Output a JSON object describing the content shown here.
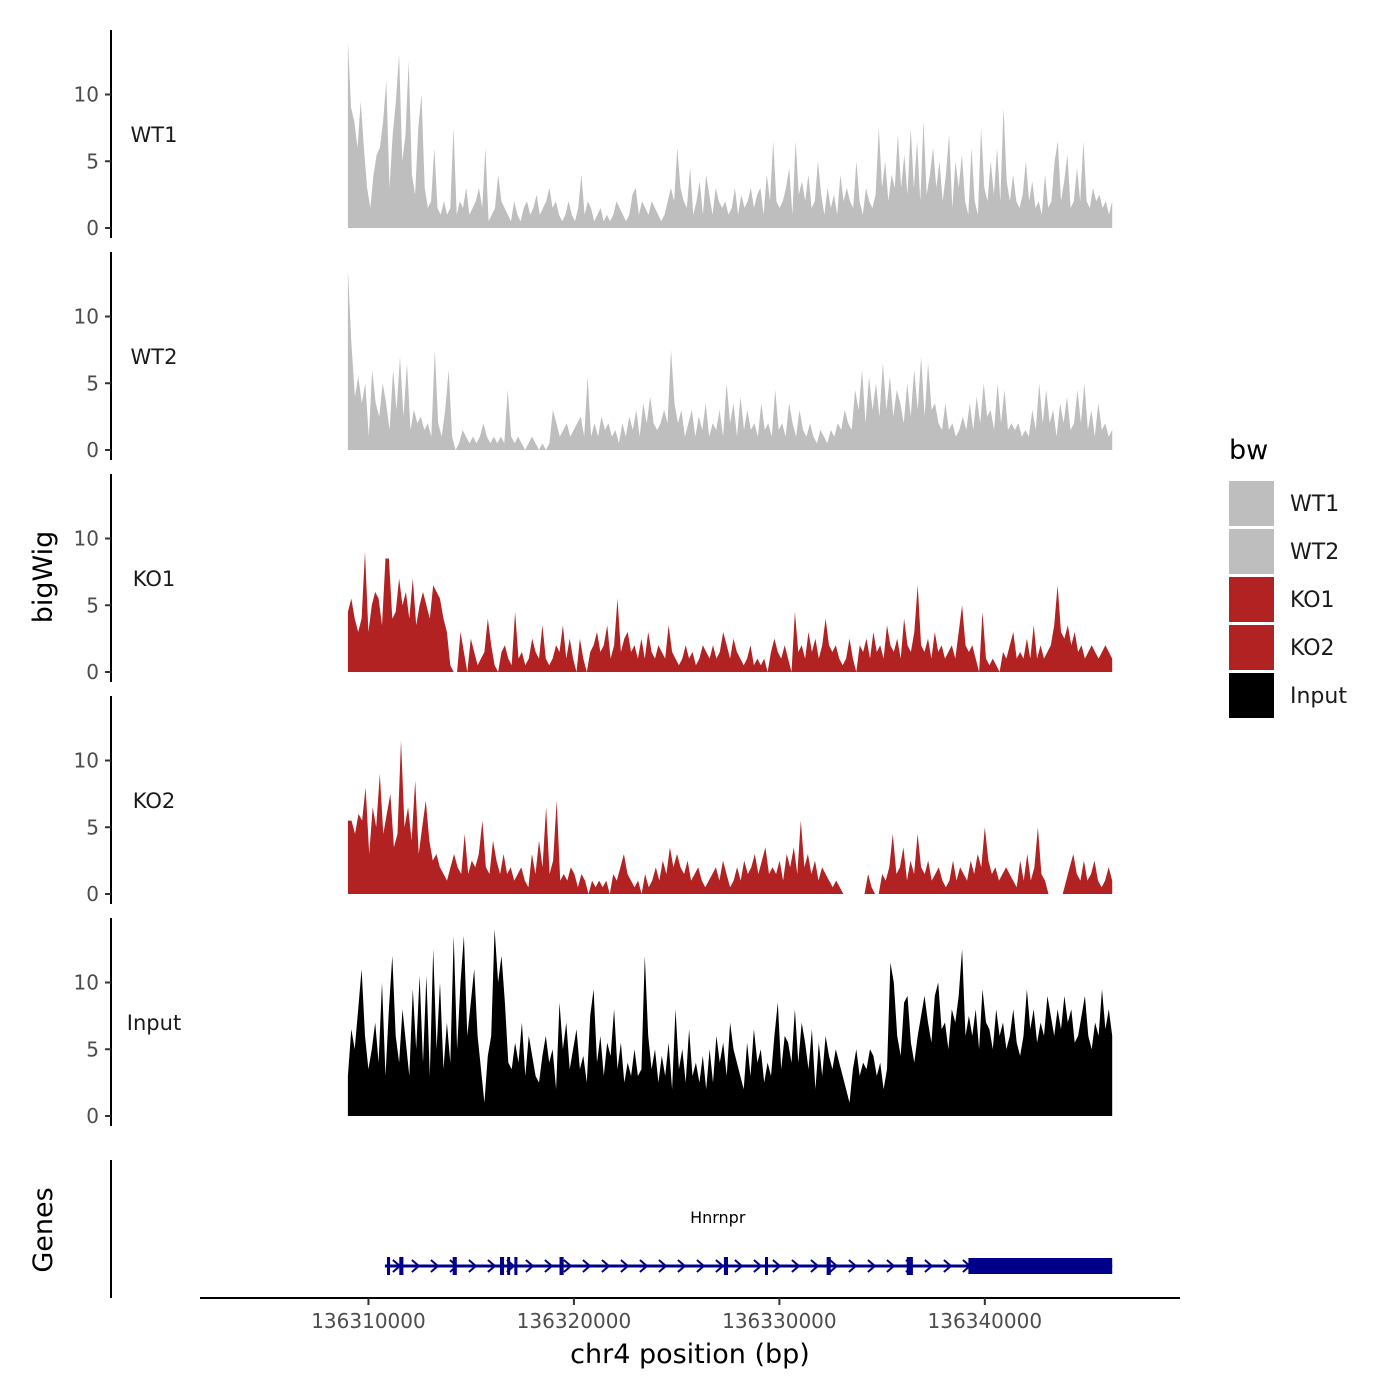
{
  "chart_data": {
    "type": "area",
    "subtype": "genome-browser-tracks",
    "title": "",
    "xlabel": "chr4 position (bp)",
    "ylabel": "bigWig",
    "genes_panel_label": "Genes",
    "x_range": [
      136301800,
      136349500
    ],
    "data_x_range": [
      136309000,
      136346200
    ],
    "x_ticks": [
      136310000,
      136320000,
      136330000,
      136340000
    ],
    "x_tick_labels": [
      "136310000",
      "136320000",
      "136330000",
      "136340000"
    ],
    "y_range": [
      0,
      14.5
    ],
    "y_ticks": [
      0,
      5,
      10
    ],
    "y_tick_labels": [
      "0",
      "5",
      "10"
    ],
    "grid": false,
    "legend": {
      "title": "bw",
      "position": "right",
      "entries": [
        {
          "label": "WT1",
          "color": "#bebebe"
        },
        {
          "label": "WT2",
          "color": "#bebebe"
        },
        {
          "label": "KO1",
          "color": "#b22222"
        },
        {
          "label": "KO2",
          "color": "#b22222"
        },
        {
          "label": "Input",
          "color": "#000000"
        }
      ]
    },
    "series": [
      {
        "name": "WT1",
        "color": "#bebebe",
        "values": [
          14.0,
          9.0,
          8.0,
          6.0,
          9.5,
          6.0,
          3.0,
          1.5,
          4.0,
          5.5,
          6.0,
          8.0,
          11.0,
          3.0,
          7.0,
          9.5,
          13.0,
          5.0,
          7.0,
          12.5,
          4.0,
          2.5,
          7.5,
          10.0,
          3.0,
          1.5,
          2.0,
          6.0,
          1.5,
          1.0,
          2.0,
          1.0,
          1.5,
          7.5,
          1.0,
          2.0,
          1.5,
          3.0,
          1.0,
          1.5,
          2.0,
          3.0,
          1.5,
          6.0,
          0.5,
          1.0,
          1.5,
          4.0,
          2.0,
          1.5,
          1.0,
          0.5,
          2.0,
          1.0,
          0.5,
          1.5,
          2.0,
          1.0,
          1.5,
          2.5,
          1.0,
          1.5,
          2.0,
          3.0,
          1.5,
          2.0,
          1.0,
          0.5,
          1.0,
          2.0,
          1.0,
          0.5,
          1.5,
          4.0,
          1.0,
          2.0,
          1.5,
          0.5,
          1.0,
          1.5,
          0.5,
          1.0,
          0.5,
          1.0,
          2.0,
          1.5,
          1.0,
          0.5,
          1.0,
          2.5,
          3.0,
          1.0,
          2.0,
          1.5,
          1.0,
          2.0,
          1.5,
          1.0,
          0.5,
          1.0,
          2.0,
          3.0,
          2.0,
          6.0,
          3.0,
          2.0,
          1.5,
          4.5,
          1.0,
          2.0,
          3.5,
          1.0,
          4.0,
          2.5,
          1.0,
          3.0,
          2.0,
          1.5,
          2.0,
          1.0,
          1.5,
          3.0,
          1.0,
          2.5,
          1.5,
          2.0,
          3.0,
          1.5,
          2.5,
          3.0,
          1.0,
          4.0,
          2.0,
          6.5,
          2.0,
          1.5,
          2.0,
          3.0,
          4.5,
          1.0,
          6.5,
          2.5,
          3.5,
          2.0,
          4.0,
          1.5,
          2.0,
          5.0,
          2.5,
          1.0,
          3.0,
          1.5,
          2.5,
          1.0,
          4.0,
          2.0,
          3.0,
          2.0,
          1.5,
          5.0,
          2.0,
          1.0,
          3.0,
          2.0,
          1.5,
          2.5,
          7.5,
          3.0,
          5.0,
          2.0,
          4.0,
          3.0,
          7.0,
          3.0,
          5.5,
          2.5,
          7.5,
          3.0,
          6.5,
          2.0,
          8.0,
          2.5,
          4.0,
          6.0,
          3.0,
          5.0,
          2.0,
          4.0,
          7.0,
          1.5,
          5.0,
          3.0,
          5.5,
          2.0,
          1.0,
          6.0,
          2.0,
          1.0,
          7.5,
          3.0,
          2.0,
          5.0,
          2.5,
          6.0,
          2.0,
          9.0,
          3.5,
          2.0,
          4.0,
          2.0,
          1.5,
          2.5,
          5.0,
          2.0,
          3.5,
          1.5,
          2.0,
          1.0,
          4.0,
          1.5,
          2.0,
          5.0,
          6.5,
          2.0,
          3.5,
          5.5,
          1.5,
          2.0,
          4.5,
          2.0,
          6.5,
          2.0,
          1.5,
          3.0,
          2.0,
          2.5,
          1.5,
          2.0,
          1.0,
          2.0
        ],
        "track_label": "WT1"
      },
      {
        "name": "WT2",
        "color": "#bebebe",
        "values": [
          13.5,
          8.0,
          4.0,
          5.5,
          3.5,
          5.0,
          1.0,
          6.0,
          3.5,
          2.5,
          5.0,
          3.5,
          1.5,
          6.0,
          3.0,
          7.0,
          2.5,
          6.5,
          1.5,
          3.0,
          2.0,
          2.5,
          1.5,
          2.0,
          1.0,
          7.5,
          2.0,
          1.0,
          3.0,
          6.0,
          1.0,
          0.0,
          0.5,
          1.5,
          1.0,
          0.5,
          1.0,
          0.5,
          1.0,
          2.0,
          1.0,
          0.5,
          1.0,
          0.5,
          1.0,
          0.5,
          4.5,
          1.0,
          0.5,
          1.0,
          0.5,
          0.0,
          0.5,
          1.0,
          0.5,
          0.0,
          0.5,
          0.0,
          0.5,
          3.0,
          2.0,
          1.0,
          1.5,
          2.0,
          1.0,
          1.5,
          2.0,
          2.5,
          1.0,
          5.5,
          1.0,
          2.0,
          1.0,
          2.5,
          1.5,
          2.0,
          1.0,
          1.5,
          0.5,
          2.0,
          1.0,
          2.5,
          1.5,
          3.0,
          1.0,
          3.5,
          2.0,
          4.0,
          2.0,
          1.5,
          2.0,
          3.0,
          2.0,
          7.5,
          3.5,
          2.0,
          3.0,
          1.0,
          2.0,
          3.0,
          1.0,
          2.5,
          1.5,
          3.5,
          1.0,
          2.0,
          1.5,
          3.0,
          1.0,
          5.0,
          2.0,
          3.5,
          1.0,
          4.0,
          1.5,
          3.0,
          1.5,
          2.0,
          1.0,
          3.5,
          1.5,
          2.0,
          1.0,
          4.5,
          1.5,
          2.0,
          1.0,
          3.5,
          2.0,
          1.0,
          3.0,
          1.5,
          1.0,
          2.0,
          1.0,
          0.5,
          1.5,
          1.0,
          0.5,
          1.5,
          1.0,
          2.0,
          1.5,
          3.0,
          2.0,
          1.5,
          4.5,
          3.0,
          6.0,
          2.0,
          5.5,
          3.0,
          5.0,
          2.5,
          6.5,
          3.0,
          5.5,
          2.5,
          4.5,
          3.5,
          2.0,
          5.0,
          2.5,
          6.0,
          3.0,
          7.0,
          2.5,
          6.5,
          3.0,
          3.5,
          2.0,
          1.5,
          3.5,
          1.5,
          2.0,
          1.0,
          1.5,
          2.5,
          1.5,
          3.5,
          1.5,
          4.0,
          2.0,
          5.0,
          2.5,
          3.0,
          1.5,
          5.0,
          2.0,
          4.5,
          1.5,
          2.0,
          1.5,
          2.0,
          1.0,
          1.5,
          1.0,
          3.0,
          1.5,
          5.0,
          2.0,
          4.5,
          2.0,
          3.0,
          1.0,
          3.5,
          2.0,
          4.0,
          1.5,
          2.0,
          4.5,
          2.0,
          5.0,
          1.5,
          3.0,
          1.0,
          3.5,
          1.5,
          2.0,
          1.0,
          1.5
        ],
        "track_label": "WT2"
      },
      {
        "name": "KO1",
        "color": "#b22222",
        "values": [
          4.5,
          5.5,
          4.0,
          3.0,
          4.0,
          9.0,
          3.0,
          5.0,
          6.0,
          5.5,
          3.5,
          8.5,
          8.5,
          4.0,
          4.5,
          7.0,
          5.0,
          6.0,
          4.0,
          7.0,
          3.5,
          5.0,
          6.0,
          5.0,
          4.0,
          6.5,
          6.0,
          5.5,
          4.0,
          3.0,
          0.5,
          0.0,
          0.0,
          3.0,
          1.5,
          0.0,
          2.5,
          1.5,
          0.5,
          1.0,
          1.5,
          4.0,
          2.0,
          0.5,
          0.0,
          1.5,
          2.0,
          1.0,
          0.5,
          4.5,
          1.0,
          1.5,
          0.5,
          1.0,
          2.5,
          1.5,
          1.0,
          3.5,
          1.0,
          0.5,
          1.0,
          2.0,
          1.5,
          3.5,
          1.0,
          2.5,
          1.0,
          0.0,
          2.5,
          1.0,
          0.0,
          1.5,
          2.0,
          3.0,
          1.5,
          2.0,
          3.5,
          1.0,
          2.0,
          5.5,
          1.5,
          2.5,
          3.0,
          1.5,
          2.0,
          1.0,
          2.5,
          1.0,
          3.0,
          1.5,
          1.0,
          2.0,
          1.5,
          1.0,
          3.5,
          1.5,
          1.0,
          0.5,
          1.0,
          2.0,
          1.0,
          1.5,
          0.5,
          1.0,
          2.0,
          1.5,
          1.0,
          2.0,
          1.0,
          1.5,
          3.0,
          2.0,
          1.0,
          2.5,
          1.5,
          1.0,
          0.5,
          1.0,
          2.0,
          0.5,
          1.0,
          0.5,
          1.0,
          0.0,
          1.5,
          2.5,
          1.5,
          1.0,
          2.0,
          1.0,
          0.0,
          4.5,
          1.5,
          2.0,
          1.0,
          3.0,
          1.5,
          2.5,
          1.0,
          2.0,
          4.0,
          2.0,
          1.5,
          2.0,
          1.0,
          0.5,
          1.0,
          2.5,
          1.0,
          0.0,
          2.0,
          1.5,
          2.5,
          1.0,
          3.0,
          1.5,
          2.0,
          1.0,
          3.5,
          2.0,
          1.5,
          2.5,
          1.0,
          4.0,
          2.0,
          1.5,
          3.0,
          6.5,
          2.0,
          1.5,
          2.5,
          1.0,
          3.0,
          1.5,
          2.0,
          1.0,
          1.5,
          2.0,
          1.0,
          3.0,
          5.0,
          2.0,
          1.5,
          2.0,
          1.0,
          0.0,
          4.5,
          1.0,
          0.5,
          1.0,
          0.5,
          0.0,
          1.5,
          1.0,
          2.0,
          3.0,
          1.0,
          1.5,
          1.0,
          2.5,
          1.0,
          3.5,
          1.0,
          2.0,
          1.0,
          1.5,
          2.0,
          3.5,
          6.5,
          3.0,
          2.5,
          3.5,
          2.0,
          3.0,
          1.5,
          2.0,
          1.0,
          1.5,
          2.0,
          1.5,
          1.0,
          1.5,
          2.0,
          1.5,
          1.0
        ],
        "track_label": "KO1"
      },
      {
        "name": "KO2",
        "color": "#b22222",
        "values": [
          5.5,
          5.5,
          4.5,
          6.0,
          5.5,
          8.0,
          3.0,
          6.5,
          5.0,
          9.0,
          4.5,
          6.0,
          7.5,
          3.5,
          4.5,
          11.5,
          5.0,
          6.5,
          4.0,
          8.5,
          3.0,
          5.0,
          7.0,
          4.0,
          2.5,
          3.0,
          2.0,
          1.5,
          1.0,
          2.0,
          3.0,
          2.0,
          1.5,
          4.5,
          1.5,
          2.5,
          2.0,
          3.0,
          5.5,
          2.0,
          1.5,
          4.0,
          2.5,
          1.5,
          3.0,
          1.5,
          2.0,
          1.0,
          1.5,
          2.0,
          1.0,
          0.5,
          3.0,
          1.5,
          4.0,
          2.0,
          6.5,
          1.5,
          2.5,
          7.0,
          1.0,
          1.5,
          1.0,
          2.0,
          1.5,
          0.5,
          1.5,
          1.0,
          0.0,
          1.0,
          0.5,
          1.0,
          0.5,
          1.0,
          0.0,
          1.5,
          1.0,
          2.0,
          3.0,
          1.5,
          1.0,
          0.5,
          1.0,
          0.0,
          1.5,
          0.5,
          1.0,
          2.0,
          1.0,
          2.5,
          1.5,
          3.5,
          2.0,
          3.0,
          2.0,
          1.5,
          2.5,
          1.0,
          1.5,
          2.0,
          1.0,
          0.5,
          1.0,
          1.5,
          2.0,
          1.0,
          2.5,
          1.5,
          0.5,
          1.0,
          2.0,
          1.0,
          2.5,
          1.5,
          2.0,
          3.0,
          1.5,
          2.5,
          3.5,
          1.5,
          2.0,
          1.5,
          2.5,
          1.0,
          3.0,
          2.0,
          3.5,
          1.5,
          5.5,
          2.0,
          3.0,
          1.5,
          2.5,
          1.0,
          2.0,
          1.5,
          1.0,
          0.5,
          1.0,
          0.5,
          0.0,
          0.0,
          0.0,
          0.0,
          0.0,
          0.0,
          0.0,
          1.5,
          0.5,
          0.0,
          0.0,
          1.5,
          1.0,
          2.0,
          4.5,
          1.5,
          2.0,
          3.5,
          1.0,
          2.5,
          1.5,
          4.5,
          2.0,
          1.5,
          2.5,
          1.0,
          1.5,
          2.0,
          1.0,
          0.5,
          1.0,
          2.5,
          1.0,
          2.0,
          1.5,
          1.0,
          2.5,
          1.5,
          3.0,
          2.0,
          5.0,
          2.5,
          1.5,
          2.0,
          1.0,
          1.5,
          2.0,
          1.5,
          1.0,
          0.5,
          2.5,
          1.0,
          3.0,
          1.0,
          2.0,
          5.0,
          1.5,
          1.0,
          0.0,
          0.0,
          0.0,
          0.0,
          0.0,
          1.0,
          2.0,
          3.0,
          1.5,
          1.0,
          2.5,
          1.0,
          1.5,
          2.5,
          1.0,
          0.5,
          1.0,
          2.0,
          1.0
        ],
        "track_label": "KO2"
      },
      {
        "name": "Input",
        "color": "#000000",
        "values": [
          3.0,
          6.5,
          5.0,
          8.0,
          11.0,
          6.0,
          3.5,
          5.0,
          7.0,
          4.0,
          10.0,
          3.0,
          8.0,
          12.0,
          6.0,
          4.0,
          8.0,
          5.5,
          3.0,
          9.5,
          5.0,
          10.5,
          4.0,
          10.5,
          3.0,
          12.5,
          5.0,
          10.0,
          3.5,
          7.0,
          4.0,
          13.5,
          5.0,
          10.0,
          13.5,
          6.0,
          8.5,
          11.0,
          6.0,
          3.5,
          1.0,
          4.5,
          6.0,
          14.0,
          10.0,
          12.0,
          8.5,
          4.0,
          3.5,
          5.5,
          4.0,
          7.0,
          3.0,
          6.0,
          4.5,
          3.0,
          2.5,
          4.5,
          6.0,
          4.0,
          5.0,
          2.0,
          8.5,
          5.0,
          7.0,
          3.5,
          5.0,
          6.5,
          3.5,
          4.5,
          2.5,
          7.5,
          9.5,
          4.0,
          6.0,
          3.0,
          5.5,
          4.5,
          8.0,
          3.5,
          5.5,
          2.5,
          4.0,
          3.0,
          5.0,
          3.0,
          3.5,
          12.0,
          6.0,
          3.5,
          5.0,
          2.5,
          4.5,
          3.0,
          5.5,
          2.0,
          8.0,
          3.5,
          5.0,
          2.5,
          6.5,
          3.0,
          4.0,
          2.5,
          4.5,
          2.0,
          5.0,
          2.5,
          6.0,
          4.0,
          5.5,
          3.0,
          7.0,
          5.0,
          4.0,
          3.0,
          2.0,
          5.5,
          3.0,
          6.5,
          4.0,
          5.0,
          2.5,
          4.0,
          3.0,
          6.0,
          8.5,
          3.5,
          6.0,
          5.5,
          4.0,
          8.0,
          4.0,
          7.0,
          5.5,
          3.5,
          6.5,
          2.0,
          5.5,
          3.0,
          6.0,
          4.5,
          3.5,
          5.0,
          4.0,
          3.0,
          2.0,
          1.0,
          3.5,
          5.0,
          3.0,
          4.0,
          3.5,
          5.0,
          4.5,
          3.0,
          4.0,
          2.0,
          3.5,
          11.5,
          10.0,
          6.0,
          4.5,
          8.5,
          9.0,
          5.5,
          4.0,
          6.0,
          7.5,
          9.0,
          7.0,
          5.5,
          9.0,
          10.0,
          6.5,
          7.0,
          5.0,
          8.0,
          7.0,
          9.0,
          12.5,
          6.0,
          7.5,
          6.0,
          8.0,
          5.0,
          9.5,
          7.0,
          6.5,
          5.0,
          8.0,
          6.0,
          7.0,
          5.0,
          6.0,
          8.0,
          5.5,
          4.5,
          6.0,
          9.5,
          6.5,
          8.0,
          5.5,
          7.0,
          6.0,
          9.0,
          7.5,
          6.0,
          8.0,
          6.5,
          9.0,
          7.0,
          8.0,
          5.5,
          6.0,
          7.5,
          9.0,
          6.0,
          5.0,
          7.0,
          6.0,
          9.5,
          6.5,
          8.0,
          6.0
        ],
        "track_label": "Input"
      }
    ],
    "genes": [
      {
        "name": "Hnrnpr",
        "strand": "+",
        "color": "#00008b",
        "start": 136310800,
        "end": 136346200,
        "exons": [
          [
            136310900,
            136311050
          ],
          [
            136311500,
            136311700
          ],
          [
            136314100,
            136314300
          ],
          [
            136316400,
            136316600
          ],
          [
            136316750,
            136316850
          ],
          [
            136317100,
            136317250
          ],
          [
            136319300,
            136319500
          ],
          [
            136327300,
            136327500
          ],
          [
            136329300,
            136329400
          ],
          [
            136332300,
            136332500
          ],
          [
            136336200,
            136336500
          ],
          [
            136339200,
            136346200
          ]
        ]
      }
    ]
  }
}
